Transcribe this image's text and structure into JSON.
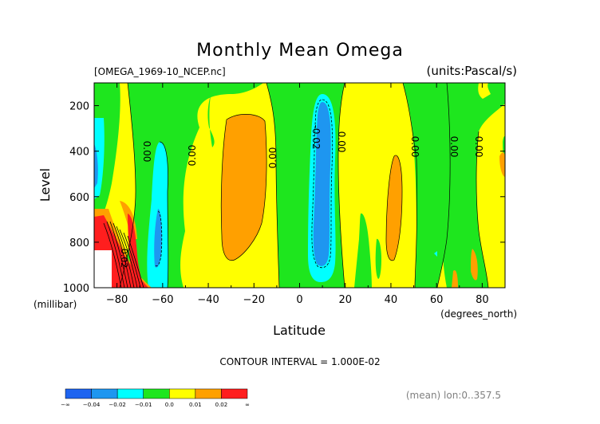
{
  "chart_data": {
    "type": "heatmap",
    "title": "Monthly Mean Omega",
    "file_label": "[OMEGA_1969-10_NCEP.nc]",
    "units_label": "(units:Pascal/s)",
    "xlabel": "Latitude",
    "ylabel": "Level",
    "x_unit_label": "(degrees_north)",
    "y_unit_label": "(millibar)",
    "xlim": [
      -90,
      90
    ],
    "ylim": [
      1000,
      100
    ],
    "x_ticks": [
      "-80",
      "-60",
      "-40",
      "-20",
      "0",
      "20",
      "40",
      "60",
      "80"
    ],
    "y_ticks": [
      "200",
      "400",
      "600",
      "800",
      "1000"
    ],
    "contour_interval_text": "CONTOUR INTERVAL = 1.000E-02",
    "mean_note": "(mean) lon:0..357.5",
    "contour_labels": [
      "0.00",
      "0.00",
      "0.00",
      "-0.02",
      "0.00",
      "0.00",
      "0.00",
      "0.00",
      "0.02"
    ],
    "colorbar": {
      "labels": [
        "-∞",
        "-0.04",
        "-0.02",
        "-0.01",
        "0.0",
        "0.01",
        "0.02",
        "∞"
      ],
      "colors": [
        "#1e64f0",
        "#1e96f0",
        "#00ffff",
        "#1ee61e",
        "#ffff00",
        "#ffa000",
        "#ff1e1e"
      ]
    },
    "colors": {
      "dark_blue": "#1e64f0",
      "blue": "#1e96f0",
      "cyan": "#00ffff",
      "green": "#1ee61e",
      "yellow": "#ffff00",
      "orange": "#ffa000",
      "red": "#ff1e1e"
    }
  }
}
